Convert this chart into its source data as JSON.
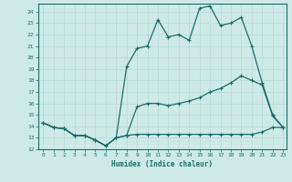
{
  "xlabel": "Humidex (Indice chaleur)",
  "xlim": [
    -0.5,
    23.3
  ],
  "ylim": [
    12,
    24.7
  ],
  "yticks": [
    12,
    13,
    14,
    15,
    16,
    17,
    18,
    19,
    20,
    21,
    22,
    23,
    24
  ],
  "xticks": [
    0,
    1,
    2,
    3,
    4,
    5,
    6,
    7,
    8,
    9,
    10,
    11,
    12,
    13,
    14,
    15,
    16,
    17,
    18,
    19,
    20,
    21,
    22,
    23
  ],
  "bg_color": "#ceeae7",
  "line_color": "#1a6e65",
  "grid_color": "#b8d8d5",
  "line_top_x": [
    0,
    1,
    2,
    3,
    4,
    5,
    6,
    7,
    8,
    9,
    10,
    11,
    12,
    13,
    14,
    15,
    16,
    17,
    18,
    19,
    20,
    21,
    22,
    23
  ],
  "line_top_y": [
    14.3,
    13.9,
    13.8,
    13.2,
    13.2,
    12.8,
    12.3,
    13.0,
    19.2,
    20.8,
    21.0,
    23.3,
    21.8,
    22.0,
    21.5,
    24.3,
    24.5,
    22.8,
    23.0,
    23.5,
    21.0,
    17.8,
    15.0,
    13.9
  ],
  "line_mid_x": [
    0,
    1,
    2,
    3,
    4,
    5,
    6,
    7,
    8,
    9,
    10,
    11,
    12,
    13,
    14,
    15,
    16,
    17,
    18,
    19,
    20,
    21,
    22,
    23
  ],
  "line_mid_y": [
    14.3,
    13.9,
    13.8,
    13.2,
    13.2,
    12.8,
    12.3,
    13.0,
    13.2,
    15.7,
    16.0,
    16.0,
    15.8,
    16.0,
    16.2,
    16.5,
    17.0,
    17.3,
    17.8,
    18.4,
    18.0,
    17.6,
    14.9,
    13.9
  ],
  "line_bot_x": [
    0,
    1,
    2,
    3,
    4,
    5,
    6,
    7,
    8,
    9,
    10,
    11,
    12,
    13,
    14,
    15,
    16,
    17,
    18,
    19,
    20,
    21,
    22,
    23
  ],
  "line_bot_y": [
    14.3,
    13.9,
    13.8,
    13.2,
    13.2,
    12.8,
    12.3,
    13.0,
    13.2,
    13.3,
    13.3,
    13.3,
    13.3,
    13.3,
    13.3,
    13.3,
    13.3,
    13.3,
    13.3,
    13.3,
    13.3,
    13.5,
    13.9,
    13.9
  ]
}
